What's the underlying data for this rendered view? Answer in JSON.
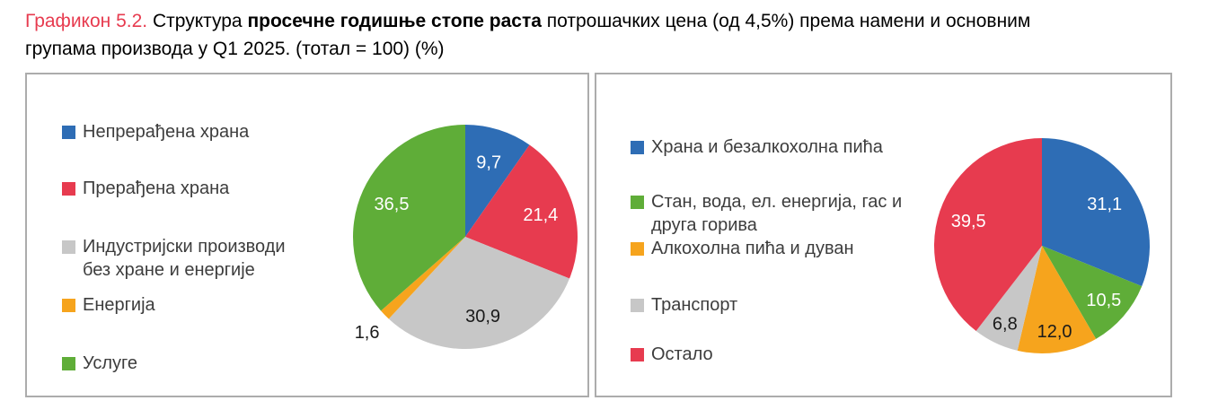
{
  "title": {
    "label": "Графикон 5.2.",
    "pre_bold": "Структура",
    "bold": "просечне годишње стопе раста",
    "post_bold": "потрошачких цена (од 4,5%) према намени и основним",
    "line2": "групама производа у Q1 2025. (тотал = 100) (%)",
    "accent_color": "#E73B4F"
  },
  "palette": {
    "blue": "#2E6DB5",
    "red": "#E73B4F",
    "gray": "#C7C7C7",
    "orange": "#F6A41D",
    "green": "#5FAD38"
  },
  "panels": [
    {
      "legend": [
        {
          "lines": [
            "Непрерађена храна",
            ""
          ],
          "color": "#2E6DB5"
        },
        {
          "lines": [
            "Прерађена храна",
            ""
          ],
          "color": "#E73B4F"
        },
        {
          "lines": [
            "Индустријски производи",
            "без хране и енергије"
          ],
          "color": "#C7C7C7"
        },
        {
          "lines": [
            "Енергија",
            ""
          ],
          "color": "#F6A41D"
        },
        {
          "lines": [
            "Услуге",
            ""
          ],
          "color": "#5FAD38"
        }
      ]
    },
    {
      "legend": [
        {
          "lines": [
            "Храна и безалкохолна пића",
            ""
          ],
          "color": "#2E6DB5"
        },
        {
          "lines": [
            "Стан, вода, ел. енергија, гас и",
            "друга горива"
          ],
          "color": "#5FAD38"
        },
        {
          "lines": [
            "Алкохолна пића и дуван",
            ""
          ],
          "color": "#F6A41D"
        },
        {
          "lines": [
            "Транспорт",
            ""
          ],
          "color": "#C7C7C7"
        },
        {
          "lines": [
            "Остало",
            ""
          ],
          "color": "#E73B4F"
        }
      ]
    }
  ],
  "chart_data": [
    {
      "type": "pie",
      "title": "Структура просечне годишње стопе раста потрошачких цена према основним групама производа, Q1 2025 (тотал = 100) (%)",
      "legend_position": "left",
      "start_angle_deg": 0,
      "direction": "clockwise",
      "total": 100,
      "decimal_separator": ",",
      "slices": [
        {
          "label": "Непрерађена храна",
          "value": 9.7,
          "color": "#2E6DB5",
          "label_color": "#FFFFFF",
          "label_r": 0.7
        },
        {
          "label": "Прерађена храна",
          "value": 21.4,
          "color": "#E73B4F",
          "label_color": "#FFFFFF",
          "label_r": 0.7
        },
        {
          "label": "Индустријски производи без хране и енергије",
          "value": 30.9,
          "color": "#C7C7C7",
          "label_color": "#1A1A1A",
          "label_r": 0.72
        },
        {
          "label": "Енергија",
          "value": 1.6,
          "color": "#F6A41D",
          "label_color": "#1A1A1A",
          "label_r": 1.22,
          "outside": true
        },
        {
          "label": "Услуге",
          "value": 36.5,
          "color": "#5FAD38",
          "label_color": "#FFFFFF",
          "label_r": 0.72
        }
      ]
    },
    {
      "type": "pie",
      "title": "Структура просечне годишње стопе раста потрошачких цена према намени (COICOP), Q1 2025 (тотал = 100) (%)",
      "legend_position": "left",
      "start_angle_deg": 0,
      "direction": "clockwise",
      "total": 100,
      "decimal_separator": ",",
      "slices": [
        {
          "label": "Храна и безалкохолна пића",
          "value": 31.1,
          "color": "#2E6DB5",
          "label_color": "#FFFFFF",
          "label_r": 0.7
        },
        {
          "label": "Стан, вода, ел. енергија, гас и друга горива",
          "value": 10.5,
          "color": "#5FAD38",
          "label_color": "#FFFFFF",
          "label_r": 0.76
        },
        {
          "label": "Алкохолна пића и дуван",
          "value": 12.0,
          "color": "#F6A41D",
          "label_color": "#1A1A1A",
          "label_r": 0.8
        },
        {
          "label": "Транспорт",
          "value": 6.8,
          "color": "#C7C7C7",
          "label_color": "#1A1A1A",
          "label_r": 0.8
        },
        {
          "label": "Остало",
          "value": 39.5,
          "color": "#E73B4F",
          "label_color": "#FFFFFF",
          "label_r": 0.72
        }
      ]
    }
  ]
}
